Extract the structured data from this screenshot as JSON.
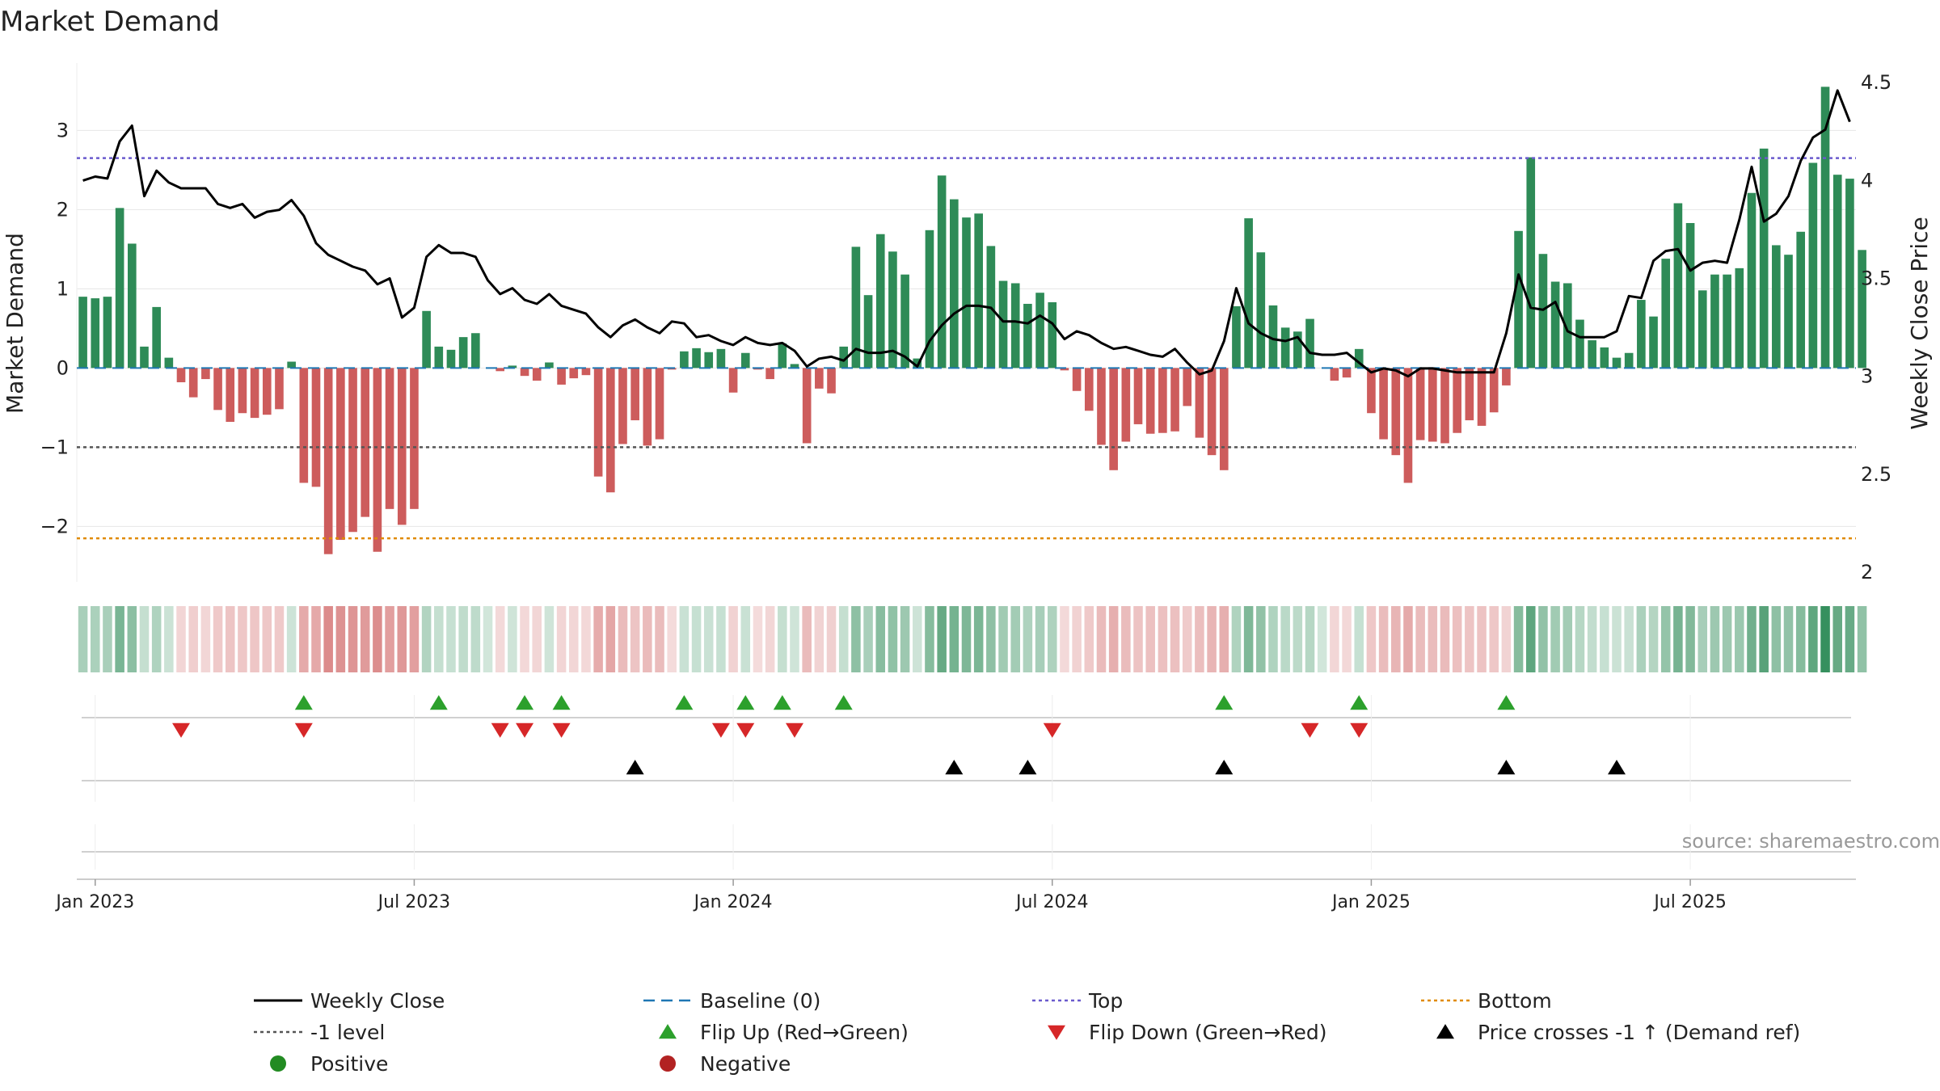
{
  "title": "Market Demand",
  "source": "source: sharemaestro.com",
  "chart_data": {
    "type": "bar",
    "dates_start": "2022-12-26",
    "week_count": 145,
    "x_tick_labels": [
      "Jan 2023",
      "Jul 2023",
      "Jan 2024",
      "Jul 2024",
      "Jan 2025",
      "Jul 2025"
    ],
    "x_tick_weeks": [
      1,
      27,
      53,
      79,
      105,
      131
    ],
    "left_axis": {
      "label": "Market Demand",
      "ylim": [
        -2.7,
        3.85
      ],
      "ticks": [
        -2,
        -1,
        0,
        1,
        2,
        3
      ],
      "tick_labels": [
        "−2",
        "−1",
        "0",
        "1",
        "2",
        "3"
      ]
    },
    "right_axis": {
      "label": "Weekly Close Price",
      "ylim": [
        1.95,
        4.6
      ],
      "ticks": [
        2,
        2.5,
        3,
        3.5,
        4,
        4.5
      ],
      "tick_labels": [
        "2",
        "2.5",
        "3",
        "3.5",
        "4",
        "4.5"
      ]
    },
    "reference_lines": {
      "top": 2.65,
      "minus_one": -1,
      "bottom": -2.15,
      "baseline": 0
    },
    "demand": [
      0.9,
      0.88,
      0.9,
      2.02,
      1.57,
      0.27,
      0.77,
      0.13,
      -0.18,
      -0.37,
      -0.14,
      -0.53,
      -0.68,
      -0.57,
      -0.63,
      -0.59,
      -0.52,
      0.08,
      -1.45,
      -1.5,
      -2.35,
      -2.17,
      -2.07,
      -1.88,
      -2.32,
      -1.78,
      -1.98,
      -1.78,
      0.72,
      0.27,
      0.23,
      0.39,
      0.44,
      0.0,
      -0.04,
      0.03,
      -0.1,
      -0.16,
      0.07,
      -0.21,
      -0.13,
      -0.09,
      -1.37,
      -1.57,
      -0.96,
      -0.66,
      -0.98,
      -0.9,
      -0.02,
      0.21,
      0.25,
      0.2,
      0.24,
      -0.31,
      0.19,
      -0.02,
      -0.14,
      0.31,
      0.05,
      -0.95,
      -0.26,
      -0.32,
      0.27,
      1.53,
      0.92,
      1.69,
      1.47,
      1.18,
      0.12,
      1.74,
      2.43,
      2.13,
      1.9,
      1.95,
      1.54,
      1.1,
      1.07,
      0.81,
      0.95,
      0.83,
      -0.03,
      -0.29,
      -0.54,
      -0.97,
      -1.29,
      -0.93,
      -0.71,
      -0.83,
      -0.82,
      -0.8,
      -0.48,
      -0.88,
      -1.1,
      -1.29,
      0.78,
      1.89,
      1.46,
      0.79,
      0.51,
      0.46,
      0.62,
      0.01,
      -0.16,
      -0.12,
      0.24,
      -0.57,
      -0.9,
      -1.1,
      -1.45,
      -0.91,
      -0.93,
      -0.95,
      -0.82,
      -0.66,
      -0.73,
      -0.56,
      -0.22,
      1.73,
      2.66,
      1.44,
      1.09,
      1.07,
      0.61,
      0.35,
      0.26,
      0.13,
      0.19,
      0.86,
      0.65,
      1.38,
      2.08,
      1.83,
      0.98,
      1.18,
      1.18,
      1.26,
      2.21,
      2.77,
      1.55,
      1.43,
      1.72,
      2.59,
      3.55,
      2.44,
      2.39,
      1.49
    ],
    "weekly_close": [
      4.0,
      4.02,
      4.01,
      4.2,
      4.28,
      3.92,
      4.05,
      3.99,
      3.96,
      3.96,
      3.96,
      3.88,
      3.86,
      3.88,
      3.81,
      3.84,
      3.85,
      3.9,
      3.82,
      3.68,
      3.62,
      3.59,
      3.56,
      3.54,
      3.47,
      3.5,
      3.3,
      3.35,
      3.61,
      3.67,
      3.63,
      3.63,
      3.61,
      3.49,
      3.42,
      3.45,
      3.39,
      3.37,
      3.42,
      3.36,
      3.34,
      3.32,
      3.25,
      3.2,
      3.26,
      3.29,
      3.25,
      3.22,
      3.28,
      3.27,
      3.2,
      3.21,
      3.18,
      3.16,
      3.2,
      3.17,
      3.16,
      3.17,
      3.13,
      3.05,
      3.09,
      3.1,
      3.08,
      3.14,
      3.12,
      3.12,
      3.13,
      3.1,
      3.05,
      3.18,
      3.26,
      3.32,
      3.36,
      3.36,
      3.35,
      3.28,
      3.28,
      3.27,
      3.31,
      3.27,
      3.19,
      3.23,
      3.21,
      3.17,
      3.14,
      3.15,
      3.13,
      3.11,
      3.1,
      3.14,
      3.07,
      3.01,
      3.03,
      3.18,
      3.45,
      3.27,
      3.22,
      3.19,
      3.18,
      3.2,
      3.12,
      3.11,
      3.11,
      3.12,
      3.07,
      3.02,
      3.04,
      3.03,
      3.0,
      3.04,
      3.04,
      3.03,
      3.02,
      3.02,
      3.02,
      3.02,
      3.22,
      3.52,
      3.35,
      3.34,
      3.38,
      3.23,
      3.2,
      3.2,
      3.2,
      3.23,
      3.41,
      3.4,
      3.59,
      3.64,
      3.65,
      3.54,
      3.58,
      3.59,
      3.58,
      3.8,
      4.07,
      3.79,
      3.83,
      3.92,
      4.1,
      4.22,
      4.26,
      4.46,
      4.3
    ],
    "flip_up_weeks": [
      18,
      29,
      36,
      39,
      49,
      54,
      57,
      62,
      93,
      104,
      116
    ],
    "flip_down_weeks": [
      8,
      18,
      34,
      36,
      39,
      52,
      54,
      58,
      79,
      100,
      104
    ],
    "price_cross_weeks": [
      45,
      71,
      77,
      93,
      116,
      125
    ],
    "legend": [
      {
        "label": "Weekly Close",
        "kind": "line",
        "color": "#000000"
      },
      {
        "label": "Baseline (0)",
        "kind": "dash",
        "color": "#1f77b4"
      },
      {
        "label": "Top",
        "kind": "dot",
        "color": "#6a5acd"
      },
      {
        "label": "Bottom",
        "kind": "dot",
        "color": "#e08a00"
      },
      {
        "label": "-1 level",
        "kind": "dot",
        "color": "#555555"
      },
      {
        "label": "Flip Up (Red→Green)",
        "kind": "tri-up",
        "color": "#2ca02c"
      },
      {
        "label": "Flip Down (Green→Red)",
        "kind": "tri-down",
        "color": "#d62728"
      },
      {
        "label": "Price crosses -1 ↑ (Demand ref)",
        "kind": "tri-up",
        "color": "#000000"
      },
      {
        "label": "Positive",
        "kind": "circle",
        "color": "#228b22"
      },
      {
        "label": "Negative",
        "kind": "circle",
        "color": "#b22222"
      }
    ],
    "colors": {
      "positive": "#2e8b57",
      "negative": "#cd5c5c",
      "grid": "#e6e6e6"
    }
  }
}
